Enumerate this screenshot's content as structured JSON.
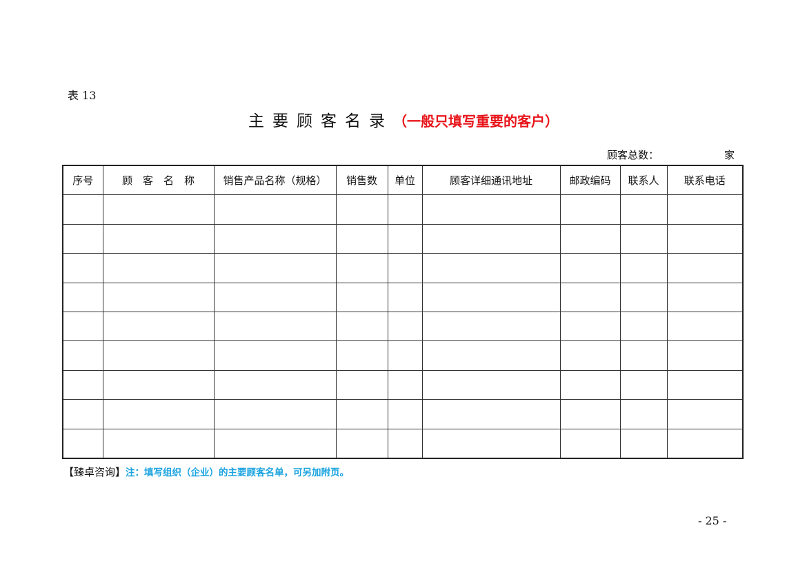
{
  "table_label": "表 13",
  "title": "主要顾客名录",
  "title_note": "（一般只填写重要的客户）",
  "customer_count_label": "顾客总数：",
  "customer_count_unit": "家",
  "columns": [
    "序号",
    "顾　客　名　称",
    "销售产品名称（规格）",
    "销售数",
    "单位",
    "顾客详细通讯地址",
    "邮政编码",
    "联系人",
    "联系电话"
  ],
  "empty_rows": 9,
  "note_brand": "【臻卓咨询】",
  "note_text": "注：填写组织（企业）的主要顾客名单，可另加附页。",
  "page_number": "- 25 -"
}
